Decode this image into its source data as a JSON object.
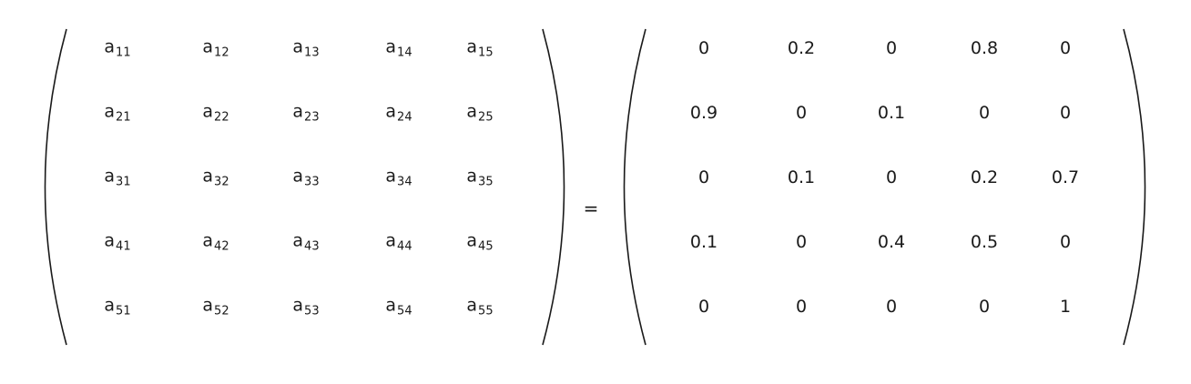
{
  "equation": {
    "equals_sign": "=",
    "left_matrix": {
      "symbol": "a",
      "rows": [
        [
          "11",
          "12",
          "13",
          "14",
          "15"
        ],
        [
          "21",
          "22",
          "23",
          "24",
          "25"
        ],
        [
          "31",
          "32",
          "33",
          "34",
          "35"
        ],
        [
          "41",
          "42",
          "43",
          "44",
          "45"
        ],
        [
          "51",
          "52",
          "53",
          "54",
          "55"
        ]
      ]
    },
    "right_matrix": {
      "rows": [
        [
          "0",
          "0.2",
          "0",
          "0.8",
          "0"
        ],
        [
          "0.9",
          "0",
          "0.1",
          "0",
          "0"
        ],
        [
          "0",
          "0.1",
          "0",
          "0.2",
          "0.7"
        ],
        [
          "0.1",
          "0",
          "0.4",
          "0.5",
          "0"
        ],
        [
          "0",
          "0",
          "0",
          "0",
          "1"
        ]
      ]
    }
  }
}
